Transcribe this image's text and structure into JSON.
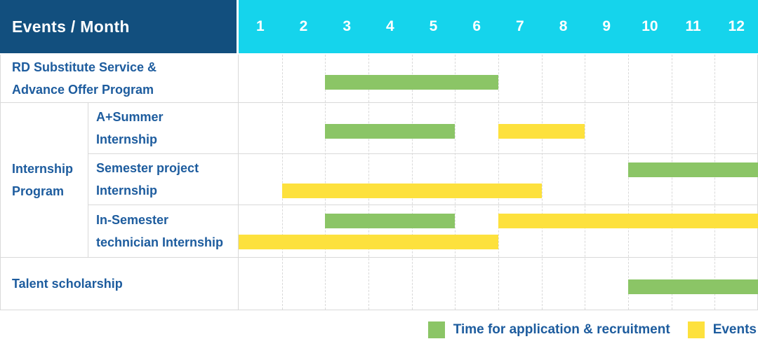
{
  "colors": {
    "navy": "#124f7e",
    "cyan": "#15d4ec",
    "green": "#8bc566",
    "yellow": "#fde13d",
    "label_blue": "#1d5c9e",
    "grid_line": "#d9d9d9"
  },
  "header": {
    "title": "Events / Month",
    "months": [
      "1",
      "2",
      "3",
      "4",
      "5",
      "6",
      "7",
      "8",
      "9",
      "10",
      "11",
      "12"
    ]
  },
  "chart_data": {
    "type": "gantt",
    "x_unit": "month",
    "x_range": [
      1,
      12
    ],
    "group_cell": {
      "label": "Internship\nProgram"
    },
    "rows": [
      {
        "label": "RD Substitute Service &\nAdvance Offer Program",
        "group": "",
        "bars": [
          {
            "kind": "application",
            "start": 3,
            "end": 6,
            "lane": "mid"
          }
        ]
      },
      {
        "label": "A+Summer\nInternship",
        "group": "Internship Program",
        "bars": [
          {
            "kind": "application",
            "start": 3,
            "end": 5,
            "lane": "mid"
          },
          {
            "kind": "event",
            "start": 7,
            "end": 8,
            "lane": "mid"
          }
        ]
      },
      {
        "label": "Semester project\nInternship",
        "group": "Internship Program",
        "bars": [
          {
            "kind": "application",
            "start": 10,
            "end": 12,
            "lane": "top"
          },
          {
            "kind": "event",
            "start": 2,
            "end": 7,
            "lane": "bottom"
          }
        ]
      },
      {
        "label": "In-Semester\ntechnician Internship",
        "group": "Internship Program",
        "bars": [
          {
            "kind": "application",
            "start": 3,
            "end": 5,
            "lane": "top"
          },
          {
            "kind": "event",
            "start": 7,
            "end": 12,
            "lane": "top"
          },
          {
            "kind": "event",
            "start": 1,
            "end": 6,
            "lane": "bottom"
          }
        ]
      },
      {
        "label": "Talent scholarship",
        "group": "",
        "bars": [
          {
            "kind": "application",
            "start": 10,
            "end": 12,
            "lane": "mid"
          }
        ]
      }
    ],
    "legend": [
      {
        "kind": "application",
        "label": "Time for application & recruitment"
      },
      {
        "kind": "event",
        "label": "Events"
      }
    ]
  }
}
